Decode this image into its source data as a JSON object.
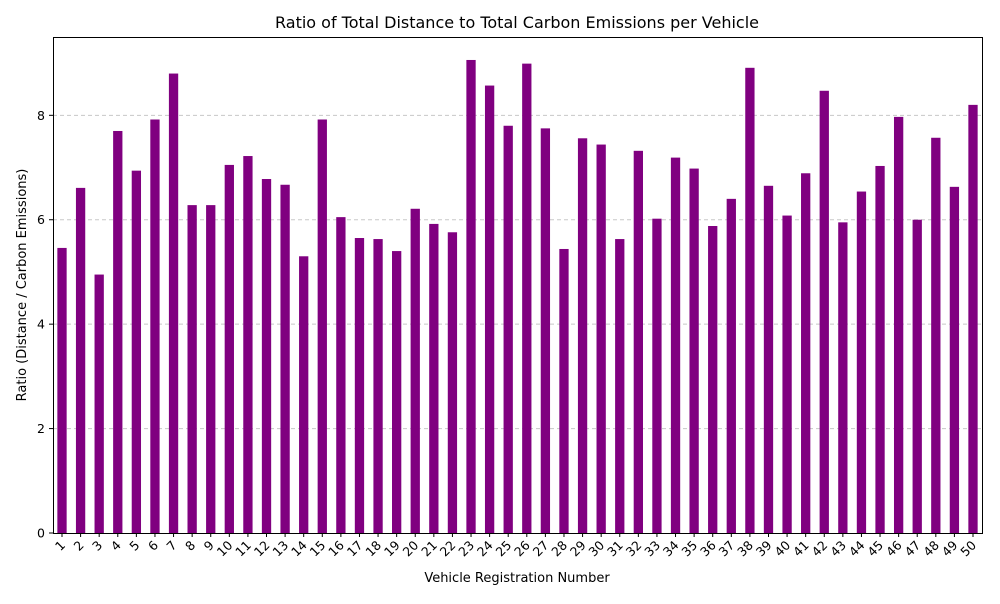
{
  "chart_data": {
    "type": "bar",
    "title": "Ratio of Total Distance to Total Carbon Emissions per Vehicle",
    "xlabel": "Vehicle Registration Number",
    "ylabel": "Ratio (Distance / Carbon Emissions)",
    "ylim": [
      0,
      9.5
    ],
    "yticks": [
      0,
      2,
      4,
      6,
      8
    ],
    "grid": "y-dashed",
    "bar_color": "#800080",
    "grid_color": "#c8c8c8",
    "categories": [
      "1",
      "2",
      "3",
      "4",
      "5",
      "6",
      "7",
      "8",
      "9",
      "10",
      "11",
      "12",
      "13",
      "14",
      "15",
      "16",
      "17",
      "18",
      "19",
      "20",
      "21",
      "22",
      "23",
      "24",
      "25",
      "26",
      "27",
      "28",
      "29",
      "30",
      "31",
      "32",
      "33",
      "34",
      "35",
      "36",
      "37",
      "38",
      "39",
      "40",
      "41",
      "42",
      "43",
      "44",
      "45",
      "46",
      "47",
      "48",
      "49",
      "50"
    ],
    "values": [
      5.46,
      6.61,
      4.95,
      7.7,
      6.94,
      7.92,
      8.8,
      6.28,
      6.28,
      7.05,
      7.22,
      6.78,
      6.67,
      5.3,
      7.92,
      6.05,
      5.65,
      5.63,
      5.4,
      6.21,
      5.92,
      5.76,
      9.06,
      8.57,
      7.8,
      8.99,
      7.75,
      5.44,
      7.56,
      7.44,
      5.63,
      7.32,
      6.02,
      7.19,
      6.98,
      5.88,
      6.4,
      8.91,
      6.65,
      6.08,
      6.89,
      8.47,
      5.95,
      6.54,
      7.03,
      7.97,
      6.0,
      7.57,
      6.63,
      8.2
    ]
  }
}
